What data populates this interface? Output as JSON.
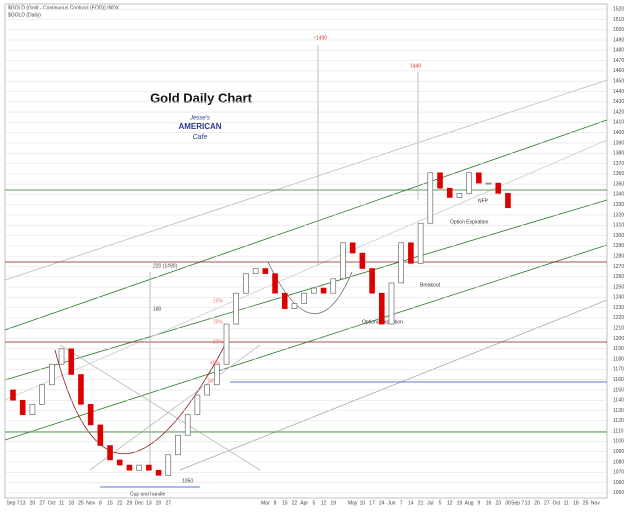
{
  "chart_data": {
    "type": "candlestick",
    "header": "$GOLD (Gold - Continuous Contract (EOD)) INDX",
    "subheader": "$GOLD (Daily)",
    "title": "Gold Daily Chart",
    "logo": [
      "Jesse's",
      "AMERICAN",
      "Cafe"
    ],
    "annotations": [
      "~1490",
      "1440",
      "220 (1490)",
      "180",
      "10%",
      "20%",
      "30%",
      "40%",
      "50%",
      "Cup and handle",
      "1050",
      "Options Expiration",
      "Breakout",
      "Option Expiration",
      "NFP"
    ],
    "categories": [
      "Sep 7",
      "13",
      "20",
      "27",
      "Oct",
      "11",
      "18",
      "25",
      "Nov",
      "8",
      "15",
      "22",
      "29",
      "Dec",
      "13",
      "20",
      "27",
      null,
      null,
      null,
      null,
      null,
      null,
      null,
      null,
      null,
      "Mar",
      "8",
      "15",
      "22",
      "Apr",
      "5",
      "12",
      "19",
      null,
      "May",
      "10",
      "17",
      "24",
      "Jun",
      "7",
      "14",
      "21",
      "Jul",
      "5",
      "12",
      "19",
      "Aug",
      "9",
      "16",
      "23",
      "30",
      "Sep 7",
      "13",
      "20",
      "27",
      "Oct",
      "11",
      "18",
      "25",
      "Nov"
    ],
    "open": [
      1150,
      1140,
      1126,
      1136,
      1155,
      1175,
      1190,
      1165,
      1136,
      1116,
      1096,
      1082,
      1077,
      1072,
      1077,
      1072,
      1067,
      1087,
      1106,
      1126,
      1145,
      1155,
      1175,
      1214,
      1244,
      1263,
      1268,
      1263,
      1244,
      1229,
      1234,
      1244,
      1249,
      1244,
      1258,
      1293,
      1283,
      1268,
      1244,
      1214,
      1254,
      1293,
      1273,
      1312,
      1361,
      1346,
      1337,
      1341,
      1361,
      1351,
      1351,
      1341,
      null,
      null,
      null,
      null,
      null,
      null,
      null,
      null,
      null
    ],
    "close": [
      1140,
      1126,
      1136,
      1155,
      1175,
      1190,
      1165,
      1136,
      1116,
      1096,
      1082,
      1077,
      1072,
      1077,
      1072,
      1067,
      1087,
      1106,
      1126,
      1145,
      1155,
      1175,
      1214,
      1244,
      1263,
      1268,
      1263,
      1244,
      1229,
      1234,
      1244,
      1249,
      1244,
      1258,
      1293,
      1283,
      1268,
      1244,
      1214,
      1254,
      1293,
      1273,
      1312,
      1361,
      1346,
      1337,
      1341,
      1361,
      1351,
      1351,
      1341,
      1327,
      null,
      null,
      null,
      null,
      null,
      null,
      null,
      null,
      null
    ],
    "up_color": "#555555",
    "down_color": "#dd0000",
    "ylim": [
      1045,
      1525
    ],
    "yticks": [
      1050,
      1060,
      1070,
      1080,
      1090,
      1100,
      1110,
      1120,
      1130,
      1140,
      1150,
      1160,
      1170,
      1180,
      1190,
      1200,
      1210,
      1220,
      1230,
      1240,
      1250,
      1260,
      1270,
      1280,
      1290,
      1300,
      1310,
      1320,
      1330,
      1340,
      1350,
      1360,
      1370,
      1380,
      1390,
      1400,
      1410,
      1420,
      1430,
      1440,
      1450,
      1460,
      1470,
      1480,
      1490,
      1500,
      1510,
      1520
    ],
    "grid": true
  }
}
